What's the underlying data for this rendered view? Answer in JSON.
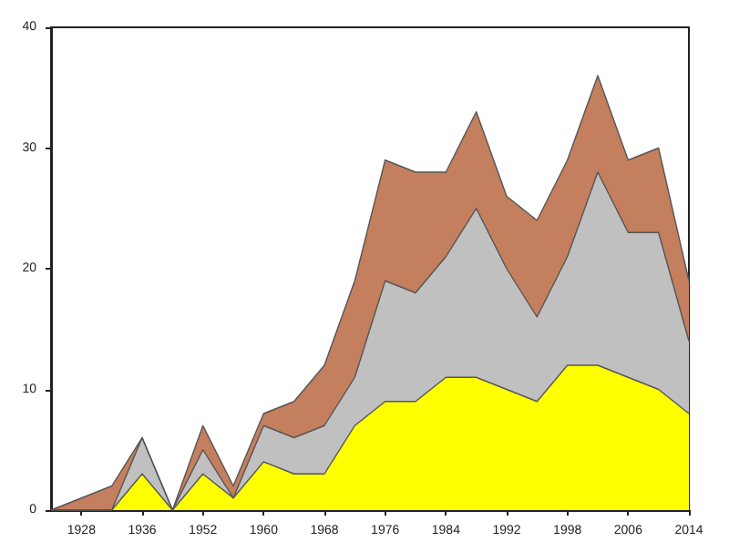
{
  "chart_data": {
    "type": "area",
    "stacked": true,
    "categories": [
      null,
      "1928",
      null,
      "1936",
      null,
      "1952",
      null,
      "1960",
      null,
      "1968",
      null,
      "1976",
      null,
      "1984",
      null,
      "1992",
      null,
      "1998",
      null,
      "2006",
      null,
      "2014"
    ],
    "series": [
      {
        "color": "#ffff00",
        "values": [
          0,
          0,
          0,
          3,
          0,
          3,
          1,
          4,
          3,
          3,
          7,
          9,
          9,
          11,
          11,
          10,
          9,
          12,
          12,
          11,
          10,
          8
        ]
      },
      {
        "color": "#c0c0c0",
        "values": [
          0,
          0,
          0,
          3,
          0,
          2,
          0,
          3,
          3,
          4,
          4,
          10,
          9,
          10,
          14,
          10,
          7,
          9,
          16,
          12,
          13,
          6
        ]
      },
      {
        "color": "#c47f5e",
        "values": [
          0,
          1,
          2,
          0,
          0,
          2,
          1,
          1,
          3,
          5,
          8,
          10,
          10,
          7,
          8,
          6,
          8,
          8,
          8,
          6,
          7,
          5
        ]
      }
    ],
    "ylim": [
      0,
      40
    ],
    "yticks": [
      0,
      10,
      20,
      30,
      40
    ],
    "grid": false
  }
}
